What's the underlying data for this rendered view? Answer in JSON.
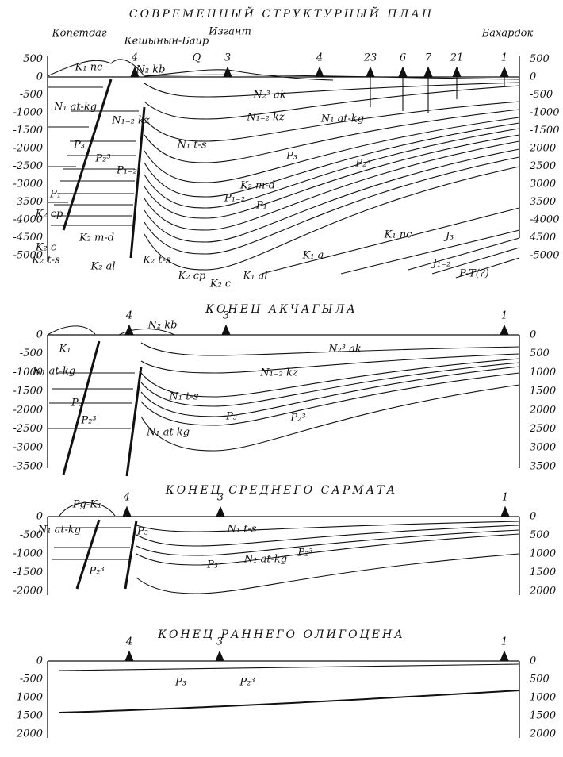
{
  "panels": [
    {
      "title": "СОВРЕМЕННЫЙ СТРУКТУРНЫЙ ПЛАН",
      "places": [
        "Копетдаг",
        "Кешынын-Баир",
        "Изгант",
        "Бахардок"
      ],
      "wells": [
        "4",
        "3",
        "4",
        "23",
        "6",
        "7",
        "21",
        "1"
      ],
      "left_axis": [
        "500",
        "0",
        "-500",
        "-1000",
        "-1500",
        "-2000",
        "-2500",
        "-3000",
        "-3500",
        "-4000",
        "-4500",
        "-5000"
      ],
      "right_axis": [
        "500",
        "0",
        "-500",
        "-1000",
        "-1500",
        "2000",
        "2500",
        "3000",
        "3500",
        "-4000",
        "4500",
        "-5000"
      ],
      "formations": [
        "K₁ nc",
        "N₂ kb",
        "Q",
        "N₂³ ak",
        "N₁ at-kg",
        "N₁₋₂ kz",
        "N₁₋₂ kz",
        "N₁ at-kg",
        "P₃",
        "P₂³",
        "N₁ t-s",
        "P₁₋₂",
        "P₁",
        "K₂ cp",
        "K₂ m-d",
        "K₂ m-d",
        "P₃",
        "P₂³",
        "P₁₋₂",
        "P₁",
        "K₂ c",
        "K₂ t-s",
        "K₂ al",
        "K₂ t-s",
        "K₂ cp",
        "K₂ c",
        "K₁ al",
        "K₁ a",
        "K₁ nc",
        "J₃",
        "J₁₋₂",
        "P-T(?)"
      ]
    },
    {
      "title": "КОНЕЦ АКЧАГЫЛА",
      "wells": [
        "4",
        "3",
        "1"
      ],
      "left_axis": [
        "0",
        "-500",
        "-1000",
        "-1500",
        "-2000",
        "-2500",
        "-3000",
        "-3500"
      ],
      "right_axis": [
        "0",
        "500",
        "1000",
        "1500",
        "2000",
        "2500",
        "3000",
        "3500"
      ],
      "formations": [
        "K₁",
        "N₂ kb",
        "N₂³ ak",
        "N₁ at-kg",
        "N₁₋₂ kz",
        "N₁ t-s",
        "P₃",
        "P₂³",
        "P₃",
        "P₂³",
        "N₁ at kg"
      ]
    },
    {
      "title": "КОНЕЦ СРЕДНЕГО САРМАТА",
      "wells": [
        "4",
        "3",
        "1"
      ],
      "left_axis": [
        "0",
        "-500",
        "-1000",
        "-1500",
        "-2000"
      ],
      "right_axis": [
        "0",
        "500",
        "1000",
        "1500",
        "2000"
      ],
      "formations": [
        "Pg-K₁",
        "N₁ at-kg",
        "N₁ t-s",
        "P₃",
        "P₃",
        "N₁ at-kg",
        "P₂³",
        "P₂³"
      ]
    },
    {
      "title": "КОНЕЦ РАННЕГО ОЛИГОЦЕНА",
      "wells": [
        "4",
        "3",
        "1"
      ],
      "left_axis": [
        "0",
        "-500",
        "1000",
        "1500",
        "2000"
      ],
      "right_axis": [
        "0",
        "500",
        "1000",
        "1500",
        "2000"
      ],
      "formations": [
        "P₃",
        "P₂³"
      ]
    }
  ]
}
